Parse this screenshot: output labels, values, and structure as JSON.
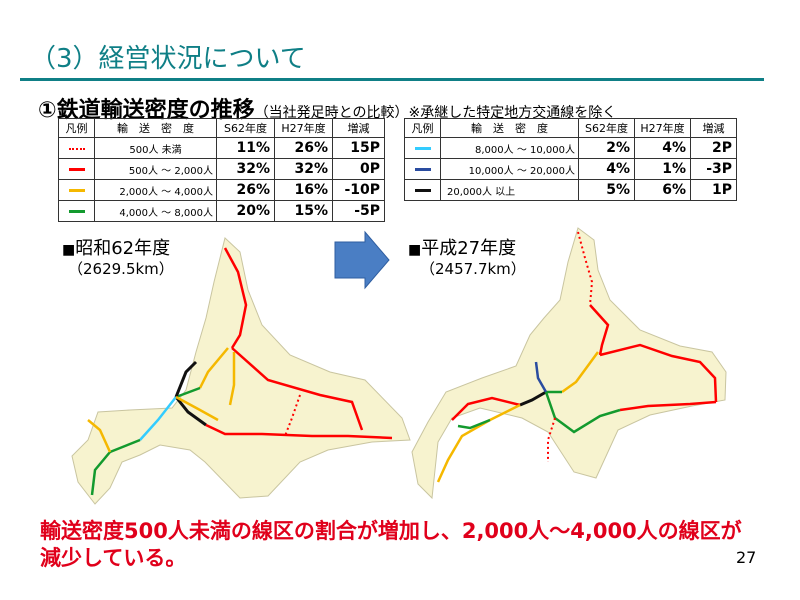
{
  "header": {
    "title": "（3）経営状況について",
    "subtitle": "①鉄道輸送密度の推移",
    "subtitle_note": "（当社発足時との比較）※承継した特定地方交通線を除く"
  },
  "table_headers": [
    "凡例",
    "輸　送　密　度",
    "S62年度",
    "H27年度",
    "増減"
  ],
  "table_left": [
    {
      "range": "500人 未満",
      "s62": "11%",
      "h27": "26%",
      "change": "15P",
      "color": "#ff0000",
      "style": "dotted"
    },
    {
      "range": "500人 ～ 2,000人",
      "s62": "32%",
      "h27": "32%",
      "change": "0P",
      "color": "#ff0000",
      "style": "solid"
    },
    {
      "range": "2,000人 ～ 4,000人",
      "s62": "26%",
      "h27": "16%",
      "change": "-10P",
      "color": "#f5b800",
      "style": "solid"
    },
    {
      "range": "4,000人 ～ 8,000人",
      "s62": "20%",
      "h27": "15%",
      "change": "-5P",
      "color": "#139a2e",
      "style": "solid"
    }
  ],
  "table_right": [
    {
      "range": "8,000人 ～ 10,000人",
      "s62": "2%",
      "h27": "4%",
      "change": "2P",
      "color": "#33ccff",
      "style": "solid"
    },
    {
      "range": "10,000人 ～ 20,000人",
      "s62": "4%",
      "h27": "1%",
      "change": "-3P",
      "color": "#2a4ca0",
      "style": "solid"
    },
    {
      "range": "20,000人 以上",
      "s62": "5%",
      "h27": "6%",
      "change": "1P",
      "color": "#111111",
      "style": "solid"
    }
  ],
  "map_left": {
    "label": "昭和62年度",
    "marker": "■",
    "km": "（2629.5km）"
  },
  "map_right": {
    "label": "平成27年度",
    "marker": "■",
    "km": "（2457.7km）"
  },
  "conclusion": "輸送密度500人未満の線区の割合が増加し、2,000人～4,000人の線区が減少している。",
  "page_number": "27",
  "colors": {
    "title": "#0f7f86",
    "land": "#f7f3cf",
    "arrow": "#4a7ec4",
    "conclusion": "#e0001b"
  }
}
